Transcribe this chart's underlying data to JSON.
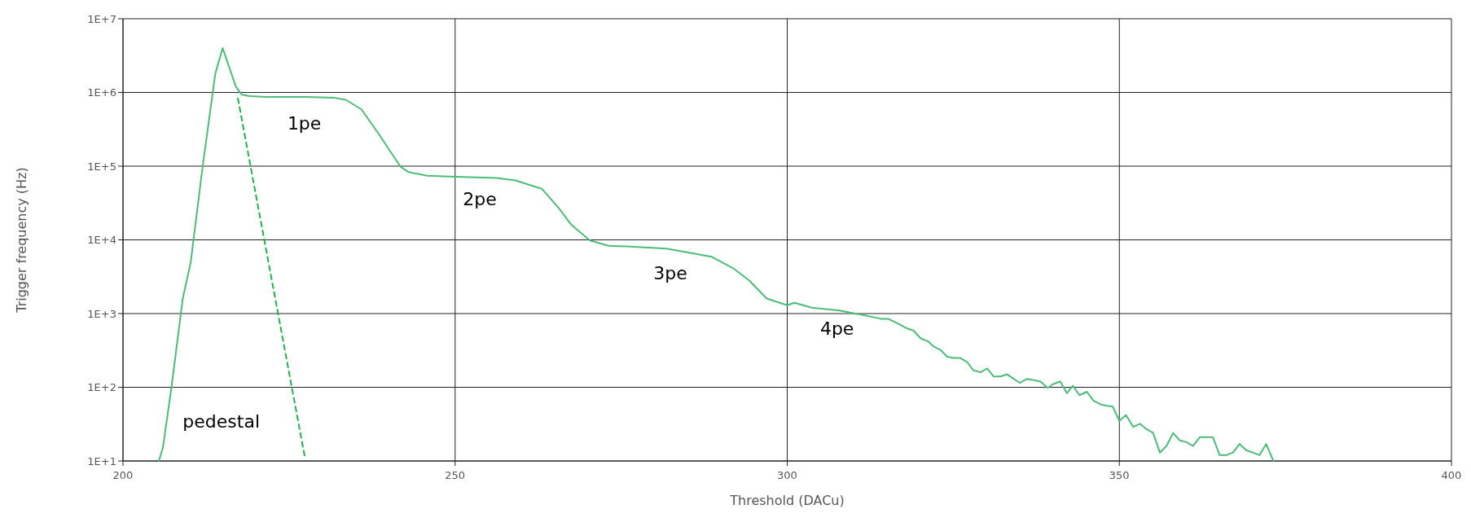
{
  "chart_data": {
    "type": "line",
    "xlabel": "Threshold (DACu)",
    "ylabel": "Trigger frequency (Hz)",
    "log": "y",
    "grid": true,
    "marker": "none",
    "xlim": [
      200,
      400
    ],
    "xticks": [
      200,
      250,
      300,
      350,
      400
    ],
    "ylim": [
      10,
      10000000
    ],
    "yticks": [
      {
        "value": 10,
        "label": "1E+1"
      },
      {
        "value": 100,
        "label": "1E+2"
      },
      {
        "value": 1000,
        "label": "1E+3"
      },
      {
        "value": 10000,
        "label": "1E+4"
      },
      {
        "value": 100000,
        "label": "1E+5"
      },
      {
        "value": 1000000,
        "label": "1E+6"
      },
      {
        "value": 10000000,
        "label": "1E+7"
      }
    ],
    "series": [
      {
        "color": "#4dbb7a",
        "line_style": "solid",
        "x": [
          205.4,
          206.0,
          207.3,
          209.0,
          210.2,
          212.0,
          213.9,
          215.0,
          217.0,
          217.9,
          219.1,
          221.4,
          227.5,
          231.7,
          233.6,
          235.9,
          238.8,
          240.2,
          241.8,
          243.0,
          245.8,
          250.0,
          256.2,
          259.1,
          263.1,
          265.6,
          267.5,
          270.3,
          273.1,
          276.4,
          281.8,
          284.4,
          288.6,
          291.9,
          294.3,
          296.9,
          300.0,
          301.1,
          303.7,
          307.9,
          310.2,
          311.6,
          314.1,
          315.2,
          316.8,
          318.2,
          319.0,
          320.1,
          321.2,
          322.0,
          323.1,
          324.1,
          325.0,
          326.0,
          327.1,
          328.0,
          329.1,
          330.1,
          331.1,
          332.1,
          333.1,
          334.1,
          335.0,
          336.1,
          338.1,
          339.2,
          340.0,
          341.1,
          342.1,
          343.0,
          344.0,
          345.1,
          346.1,
          347.1,
          348.1,
          349.0,
          350.0,
          351.0,
          352.1,
          353.1,
          354.1,
          355.1,
          356.1,
          357.1,
          358.1,
          359.1,
          360.1,
          361.1,
          362.1,
          363.1,
          364.1,
          365.1,
          366.1,
          367.1,
          368.1,
          369.1,
          370.1,
          371.1,
          372.1,
          373.2
        ],
        "values": [
          10,
          15,
          100,
          1600,
          5000,
          100000,
          1800000,
          4000000,
          1200000,
          930000,
          890000,
          870000,
          870000,
          850000,
          790000,
          590000,
          250000,
          160000,
          98000,
          83000,
          74000,
          72000,
          69000,
          64000,
          49000,
          27000,
          16000,
          9800,
          8300,
          8100,
          7600,
          6900,
          5900,
          4100,
          2800,
          1600,
          1300,
          1400,
          1200,
          1100,
          1000,
          950,
          850,
          850,
          720,
          620,
          590,
          460,
          420,
          360,
          320,
          260,
          250,
          250,
          220,
          170,
          160,
          180,
          140,
          140,
          150,
          130,
          115,
          130,
          120,
          98,
          110,
          120,
          83,
          105,
          78,
          87,
          66,
          59,
          56,
          55,
          35,
          42,
          29,
          32,
          27,
          24,
          13,
          16,
          24,
          19,
          18,
          16,
          21,
          21,
          21,
          12,
          12,
          13,
          17,
          14,
          13,
          12,
          17,
          10
        ]
      },
      {
        "color": "#1fb050",
        "line_style": "dashed",
        "x": [
          217.3,
          227.4
        ],
        "values": [
          830000,
          11
        ]
      }
    ],
    "annotations": [
      "1pe",
      "2pe",
      "3pe",
      "4pe",
      "pedestal"
    ]
  }
}
